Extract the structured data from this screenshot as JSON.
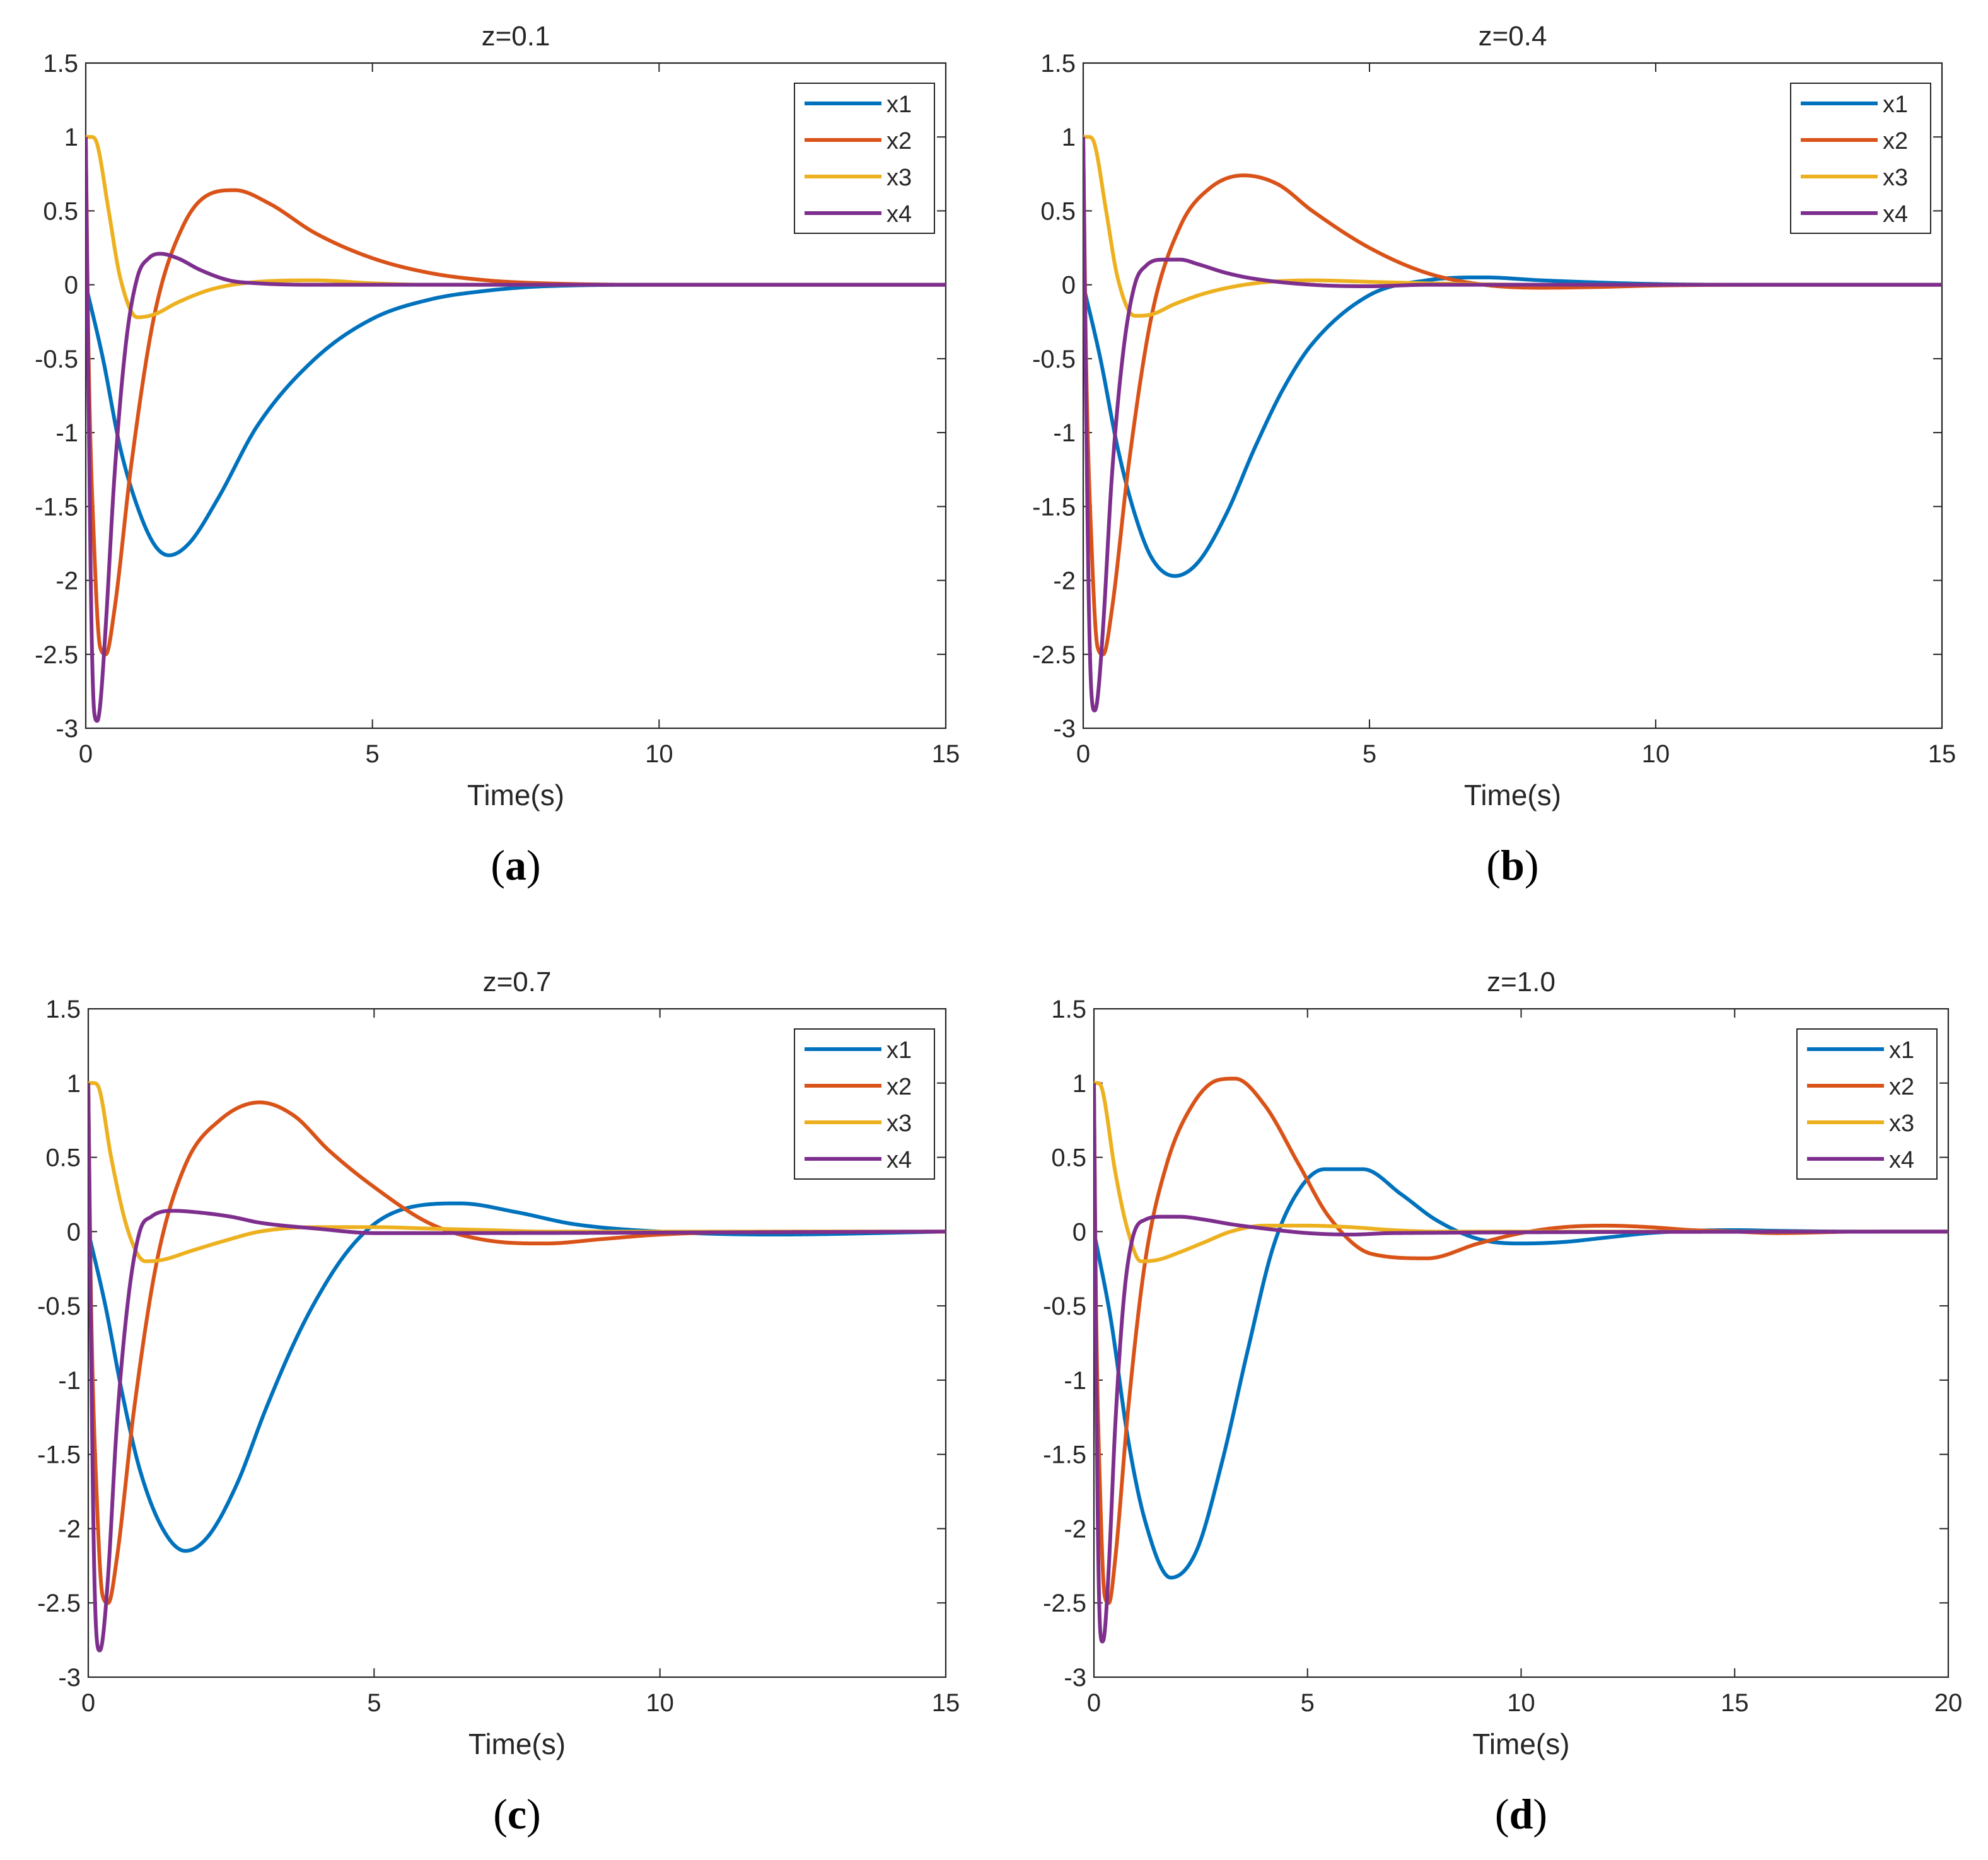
{
  "chart_data": [
    {
      "type": "line",
      "title": "z=0.1",
      "caption": {
        "open": "(",
        "letter": "a",
        "close": ")"
      },
      "xlabel": "Time(s)",
      "ylabel": "",
      "xlim": [
        0,
        15
      ],
      "ylim": [
        -3,
        1.5
      ],
      "xticks": [
        "0",
        "5",
        "10",
        "15"
      ],
      "yticks": [
        "-3",
        "-2.5",
        "-2",
        "-1.5",
        "-1",
        "-0.5",
        "0",
        "0.5",
        "1",
        "1.5"
      ],
      "legend_position": "top-right",
      "series": [
        {
          "name": "x1",
          "x": [
            0,
            0.3,
            0.6,
            0.9,
            1.2,
            1.45,
            1.8,
            2.3,
            3,
            4,
            5,
            6,
            7,
            8,
            10,
            15
          ],
          "y": [
            0,
            -0.5,
            -1.1,
            -1.5,
            -1.76,
            -1.83,
            -1.75,
            -1.45,
            -0.95,
            -0.5,
            -0.23,
            -0.1,
            -0.04,
            -0.01,
            0,
            0
          ]
        },
        {
          "name": "x2",
          "x": [
            0,
            0.05,
            0.15,
            0.25,
            0.35,
            0.5,
            0.8,
            1.2,
            1.7,
            2.2,
            2.6,
            3.2,
            4,
            5,
            6,
            7,
            8,
            10,
            15
          ],
          "y": [
            1,
            -0.5,
            -1.8,
            -2.45,
            -2.5,
            -2.2,
            -1.2,
            -0.2,
            0.4,
            0.62,
            0.64,
            0.55,
            0.35,
            0.18,
            0.08,
            0.03,
            0.01,
            0,
            0
          ]
        },
        {
          "name": "x3",
          "x": [
            0,
            0.1,
            0.2,
            0.4,
            0.6,
            0.9,
            1.2,
            1.6,
            2.2,
            3,
            4,
            5,
            6,
            8,
            15
          ],
          "y": [
            1,
            1,
            0.95,
            0.5,
            0.05,
            -0.22,
            -0.2,
            -0.12,
            -0.03,
            0.02,
            0.03,
            0.01,
            0,
            0,
            0
          ]
        },
        {
          "name": "x4",
          "x": [
            0,
            0.05,
            0.1,
            0.15,
            0.2,
            0.25,
            0.35,
            0.5,
            0.7,
            0.9,
            1.1,
            1.3,
            1.6,
            2,
            2.5,
            3,
            4,
            5,
            15
          ],
          "y": [
            1,
            -0.8,
            -2.3,
            -2.9,
            -2.95,
            -2.85,
            -2.3,
            -1.3,
            -0.4,
            0.05,
            0.18,
            0.21,
            0.18,
            0.1,
            0.03,
            0.01,
            0,
            0,
            0
          ]
        }
      ]
    },
    {
      "type": "line",
      "title": "z=0.4",
      "caption": {
        "open": "(",
        "letter": "b",
        "close": ")"
      },
      "xlabel": "Time(s)",
      "ylabel": "",
      "xlim": [
        0,
        15
      ],
      "ylim": [
        -3,
        1.5
      ],
      "xticks": [
        "0",
        "5",
        "10",
        "15"
      ],
      "yticks": [
        "-3",
        "-2.5",
        "-2",
        "-1.5",
        "-1",
        "-0.5",
        "0",
        "0.5",
        "1",
        "1.5"
      ],
      "legend_position": "top-right",
      "series": [
        {
          "name": "x1",
          "x": [
            0,
            0.3,
            0.6,
            0.9,
            1.2,
            1.6,
            2,
            2.5,
            3,
            3.5,
            4,
            5,
            6,
            7,
            8,
            10,
            12,
            15
          ],
          "y": [
            0,
            -0.5,
            -1.1,
            -1.55,
            -1.85,
            -1.97,
            -1.88,
            -1.55,
            -1.1,
            -0.7,
            -0.4,
            -0.07,
            0.03,
            0.05,
            0.03,
            0.005,
            0,
            0
          ]
        },
        {
          "name": "x2",
          "x": [
            0,
            0.05,
            0.15,
            0.25,
            0.35,
            0.5,
            0.8,
            1.2,
            1.7,
            2.2,
            2.8,
            3.4,
            4,
            5,
            6,
            7,
            8,
            9,
            10,
            12,
            15
          ],
          "y": [
            1,
            -0.5,
            -1.8,
            -2.45,
            -2.5,
            -2.2,
            -1.2,
            -0.2,
            0.4,
            0.65,
            0.74,
            0.68,
            0.5,
            0.25,
            0.08,
            0,
            -0.02,
            -0.015,
            -0.005,
            0,
            0
          ]
        },
        {
          "name": "x3",
          "x": [
            0,
            0.1,
            0.2,
            0.4,
            0.6,
            0.9,
            1.2,
            1.6,
            2.2,
            3,
            4,
            5,
            6,
            8,
            15
          ],
          "y": [
            1,
            1,
            0.95,
            0.5,
            0.05,
            -0.21,
            -0.2,
            -0.13,
            -0.05,
            0.01,
            0.03,
            0.02,
            0.01,
            0,
            0
          ]
        },
        {
          "name": "x4",
          "x": [
            0,
            0.05,
            0.1,
            0.15,
            0.2,
            0.25,
            0.35,
            0.5,
            0.7,
            0.9,
            1.1,
            1.4,
            1.7,
            2,
            2.5,
            3,
            4,
            5,
            6,
            15
          ],
          "y": [
            1,
            -0.8,
            -2.2,
            -2.8,
            -2.88,
            -2.8,
            -2.3,
            -1.3,
            -0.45,
            0,
            0.13,
            0.17,
            0.17,
            0.14,
            0.08,
            0.04,
            0,
            -0.01,
            0,
            0
          ]
        }
      ]
    },
    {
      "type": "line",
      "title": "z=0.7",
      "caption": {
        "open": "(",
        "letter": "c",
        "close": ")"
      },
      "xlabel": "Time(s)",
      "ylabel": "",
      "xlim": [
        0,
        15
      ],
      "ylim": [
        -3,
        1.5
      ],
      "xticks": [
        "0",
        "5",
        "10",
        "15"
      ],
      "yticks": [
        "-3",
        "-2.5",
        "-2",
        "-1.5",
        "-1",
        "-0.5",
        "0",
        "0.5",
        "1",
        "1.5"
      ],
      "legend_position": "top-right",
      "series": [
        {
          "name": "x1",
          "x": [
            0,
            0.3,
            0.6,
            0.9,
            1.3,
            1.7,
            2.1,
            2.6,
            3.1,
            3.6,
            4,
            4.5,
            5,
            5.5,
            6.5,
            7.5,
            8.5,
            10,
            12,
            15
          ],
          "y": [
            0,
            -0.5,
            -1.1,
            -1.6,
            -2,
            -2.15,
            -2.05,
            -1.7,
            -1.2,
            -0.75,
            -0.45,
            -0.15,
            0.05,
            0.15,
            0.19,
            0.13,
            0.05,
            0,
            -0.02,
            0
          ]
        },
        {
          "name": "x2",
          "x": [
            0,
            0.05,
            0.15,
            0.25,
            0.35,
            0.5,
            0.8,
            1.2,
            1.7,
            2.3,
            3,
            3.6,
            4.2,
            5,
            6,
            7,
            8,
            9,
            10,
            12,
            15
          ],
          "y": [
            1,
            -0.5,
            -1.8,
            -2.45,
            -2.5,
            -2.2,
            -1.2,
            -0.2,
            0.45,
            0.75,
            0.87,
            0.78,
            0.55,
            0.3,
            0.05,
            -0.06,
            -0.08,
            -0.05,
            -0.02,
            0,
            0
          ]
        },
        {
          "name": "x3",
          "x": [
            0,
            0.1,
            0.2,
            0.4,
            0.7,
            1,
            1.3,
            1.8,
            2.4,
            3,
            4,
            5,
            6,
            7,
            8,
            15
          ],
          "y": [
            1,
            1,
            0.95,
            0.5,
            0,
            -0.2,
            -0.19,
            -0.13,
            -0.06,
            0,
            0.03,
            0.03,
            0.02,
            0.01,
            0,
            0
          ]
        },
        {
          "name": "x4",
          "x": [
            0,
            0.05,
            0.1,
            0.15,
            0.2,
            0.25,
            0.35,
            0.5,
            0.7,
            0.9,
            1.1,
            1.5,
            1.9,
            2.5,
            3,
            4,
            5,
            6,
            15
          ],
          "y": [
            1,
            -0.8,
            -2.2,
            -2.75,
            -2.82,
            -2.75,
            -2.3,
            -1.3,
            -0.45,
            0,
            0.1,
            0.14,
            0.13,
            0.1,
            0.06,
            0.02,
            -0.01,
            -0.01,
            0
          ]
        }
      ]
    },
    {
      "type": "line",
      "title": "z=1.0",
      "caption": {
        "open": "(",
        "letter": "d",
        "close": ")"
      },
      "xlabel": "Time(s)",
      "ylabel": "",
      "xlim": [
        0,
        20
      ],
      "ylim": [
        -3,
        1.5
      ],
      "xticks": [
        "0",
        "5",
        "10",
        "15",
        "20"
      ],
      "yticks": [
        "-3",
        "-2.5",
        "-2",
        "-1.5",
        "-1",
        "-0.5",
        "0",
        "0.5",
        "1",
        "1.5"
      ],
      "legend_position": "top-right",
      "series": [
        {
          "name": "x1",
          "x": [
            0,
            0.4,
            0.8,
            1.2,
            1.8,
            2.4,
            3,
            3.6,
            4.2,
            4.8,
            5.4,
            6.3,
            7.2,
            8,
            9,
            10,
            11,
            12,
            13,
            14,
            15,
            16,
            18,
            20
          ],
          "y": [
            0,
            -0.6,
            -1.4,
            -1.95,
            -2.33,
            -2.15,
            -1.55,
            -0.8,
            -0.1,
            0.28,
            0.42,
            0.42,
            0.25,
            0.08,
            -0.05,
            -0.08,
            -0.07,
            -0.04,
            -0.01,
            0.005,
            0.01,
            0.005,
            0,
            0
          ]
        },
        {
          "name": "x2",
          "x": [
            0,
            0.05,
            0.15,
            0.25,
            0.35,
            0.5,
            0.8,
            1.2,
            1.7,
            2.3,
            2.9,
            3.3,
            4,
            4.8,
            5.5,
            6.5,
            7.8,
            9,
            10,
            11,
            12,
            13,
            14,
            15,
            16,
            18,
            20
          ],
          "y": [
            1,
            -0.5,
            -1.8,
            -2.45,
            -2.5,
            -2.2,
            -1.2,
            -0.2,
            0.45,
            0.85,
            1.02,
            1.03,
            0.85,
            0.45,
            0.1,
            -0.15,
            -0.18,
            -0.08,
            -0.01,
            0.03,
            0.04,
            0.03,
            0.01,
            0,
            -0.01,
            0,
            0
          ]
        },
        {
          "name": "x3",
          "x": [
            0,
            0.1,
            0.2,
            0.5,
            0.8,
            1.1,
            1.5,
            2,
            2.6,
            3.2,
            4,
            5,
            6,
            7,
            8,
            20
          ],
          "y": [
            1,
            1,
            0.95,
            0.4,
            0,
            -0.2,
            -0.19,
            -0.14,
            -0.07,
            0,
            0.04,
            0.04,
            0.03,
            0.01,
            0,
            0
          ]
        },
        {
          "name": "x4",
          "x": [
            0,
            0.05,
            0.1,
            0.15,
            0.2,
            0.25,
            0.35,
            0.5,
            0.7,
            0.9,
            1.2,
            1.6,
            2,
            2.6,
            3.2,
            4,
            5,
            6,
            7,
            20
          ],
          "y": [
            1,
            -0.8,
            -2.15,
            -2.7,
            -2.76,
            -2.7,
            -2.25,
            -1.3,
            -0.45,
            -0.05,
            0.08,
            0.1,
            0.1,
            0.08,
            0.05,
            0.02,
            -0.01,
            -0.02,
            -0.01,
            0
          ]
        }
      ]
    }
  ],
  "series_colors": {
    "x1": "#0072BD",
    "x2": "#D95319",
    "x3": "#EDB120",
    "x4": "#7E2F8E"
  }
}
